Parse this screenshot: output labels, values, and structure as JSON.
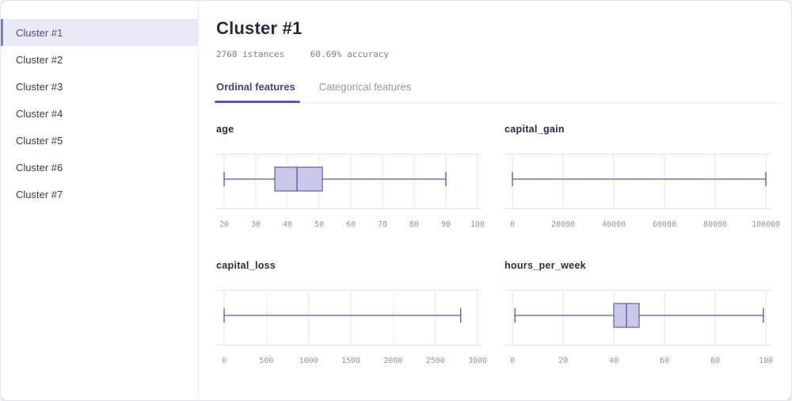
{
  "sidebar": {
    "items": [
      {
        "label": "Cluster #1",
        "selected": true
      },
      {
        "label": "Cluster #2",
        "selected": false
      },
      {
        "label": "Cluster #3",
        "selected": false
      },
      {
        "label": "Cluster #4",
        "selected": false
      },
      {
        "label": "Cluster #5",
        "selected": false
      },
      {
        "label": "Cluster #6",
        "selected": false
      },
      {
        "label": "Cluster #7",
        "selected": false
      }
    ]
  },
  "header": {
    "title": "Cluster #1",
    "instances": "2768 istances",
    "accuracy": "60.69% accuracy"
  },
  "tabs": [
    {
      "label": "Ordinal features",
      "active": true
    },
    {
      "label": "Categorical features",
      "active": false
    }
  ],
  "colors": {
    "accent": "#5a59a3",
    "box_fill": "#c9c8e8",
    "box_stroke": "#6a69a6",
    "whisker": "#5d5c9c",
    "grid": "#e7e7ec",
    "plot_border": "#e0e0e6",
    "tick_text": "#94949e",
    "selected_bg": "#eae9f7"
  },
  "chart_data": [
    {
      "type": "boxplot",
      "title": "age",
      "xlim": [
        20,
        100
      ],
      "ticks": [
        20,
        30,
        40,
        50,
        60,
        70,
        80,
        90,
        100
      ],
      "tick_labels": [
        "20",
        "30",
        "40",
        "50",
        "60",
        "70",
        "80",
        "90",
        "100"
      ],
      "box": {
        "min": 20,
        "q1": 36,
        "median": 43,
        "q3": 51,
        "max": 90
      }
    },
    {
      "type": "boxplot",
      "title": "capital_gain",
      "xlim": [
        0,
        100000
      ],
      "ticks": [
        0,
        20000,
        40000,
        60000,
        80000,
        100000
      ],
      "tick_labels": [
        "0",
        "20000",
        "40000",
        "60000",
        "80000",
        "100000"
      ],
      "box": {
        "min": 0,
        "q1": 0,
        "median": 0,
        "q3": 0,
        "max": 100000
      }
    },
    {
      "type": "boxplot",
      "title": "capital_loss",
      "xlim": [
        0,
        3000
      ],
      "ticks": [
        0,
        500,
        1000,
        1500,
        2000,
        2500,
        3000
      ],
      "tick_labels": [
        "0",
        "500",
        "1000",
        "1500",
        "2000",
        "2500",
        "3000"
      ],
      "box": {
        "min": 0,
        "q1": 0,
        "median": 0,
        "q3": 0,
        "max": 2800
      }
    },
    {
      "type": "boxplot",
      "title": "hours_per_week",
      "xlim": [
        0,
        100
      ],
      "ticks": [
        0,
        20,
        40,
        60,
        80,
        100
      ],
      "tick_labels": [
        "0",
        "20",
        "40",
        "60",
        "80",
        "100"
      ],
      "box": {
        "min": 1,
        "q1": 40,
        "median": 45,
        "q3": 50,
        "max": 99
      }
    }
  ]
}
